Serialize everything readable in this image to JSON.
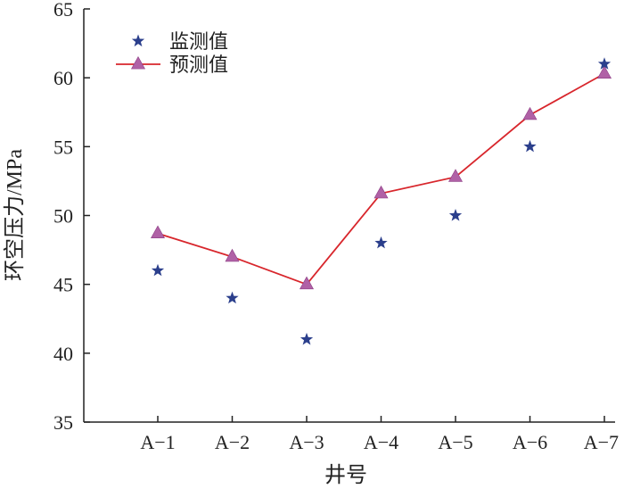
{
  "chart_data": {
    "type": "line",
    "title": "",
    "xlabel": "井号",
    "ylabel": "环空压力/MPa",
    "categories": [
      "A−1",
      "A−2",
      "A−3",
      "A−4",
      "A−5",
      "A−6",
      "A−7"
    ],
    "ylim": [
      35,
      65
    ],
    "yticks": [
      35,
      40,
      45,
      50,
      55,
      60,
      65
    ],
    "grid": false,
    "legend_position": "top-left",
    "series": [
      {
        "name": "监测值",
        "style": "markers",
        "marker": "star",
        "color": "#2b3f8c",
        "values": [
          46,
          44,
          41,
          48,
          50,
          55,
          61
        ]
      },
      {
        "name": "预测值",
        "style": "line-markers",
        "marker": "triangle",
        "color": "#d8262c",
        "marker_color": "#b061a6",
        "values": [
          48.7,
          47.0,
          45.0,
          51.6,
          52.8,
          57.3,
          60.3
        ]
      }
    ]
  }
}
